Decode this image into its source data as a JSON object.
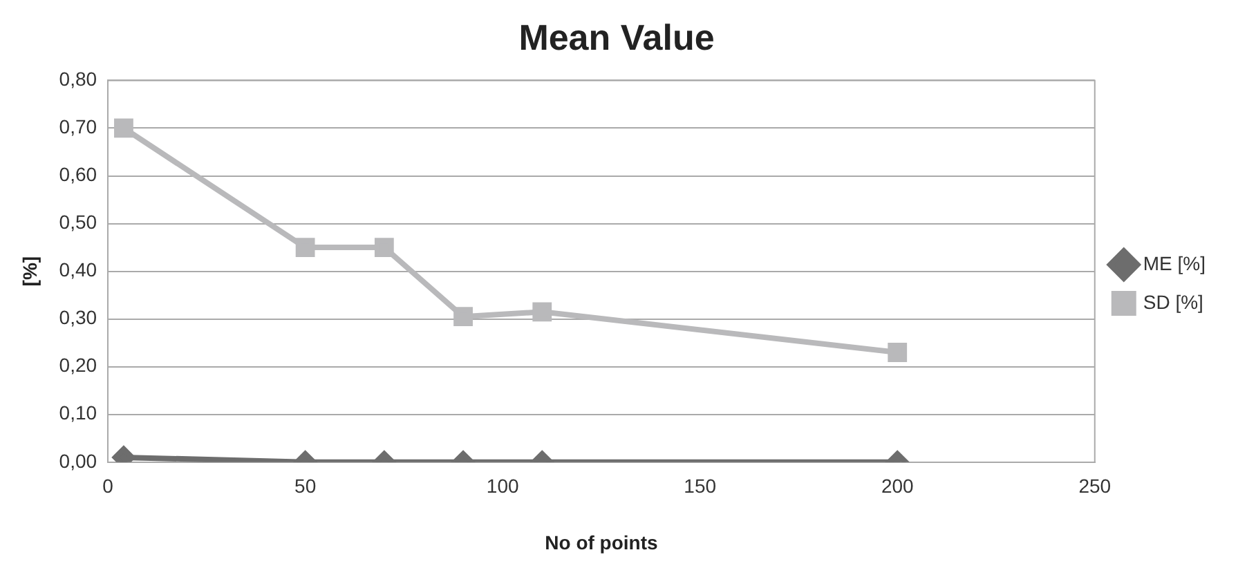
{
  "chart_data": {
    "type": "line",
    "title": "Mean Value",
    "xlabel": "No of points",
    "ylabel": "[%]",
    "x": [
      4,
      50,
      70,
      90,
      110,
      200
    ],
    "series": [
      {
        "name": "ME [%]",
        "color": "#6d6d6d",
        "marker": "diamond",
        "values": [
          0.01,
          0,
          0,
          0,
          0,
          0
        ]
      },
      {
        "name": "SD [%]",
        "color": "#b9b9bb",
        "marker": "square",
        "values": [
          0.7,
          0.45,
          0.45,
          0.305,
          0.315,
          0.23
        ]
      }
    ],
    "xlim": [
      0,
      250
    ],
    "xticks": [
      0,
      50,
      100,
      150,
      200,
      250
    ],
    "ylim": [
      0,
      0.8
    ],
    "yticks": [
      {
        "value": 0,
        "label": "0,00"
      },
      {
        "value": 0.1,
        "label": "0,10"
      },
      {
        "value": 0.2,
        "label": "0,20"
      },
      {
        "value": 0.3,
        "label": "0,30"
      },
      {
        "value": 0.4,
        "label": "0,40"
      },
      {
        "value": 0.5,
        "label": "0,50"
      },
      {
        "value": 0.6,
        "label": "0,60"
      },
      {
        "value": 0.7,
        "label": "0,70"
      },
      {
        "value": 0.8,
        "label": "0,80"
      }
    ],
    "grid": "y",
    "legend": "right",
    "line_style": "solid"
  }
}
